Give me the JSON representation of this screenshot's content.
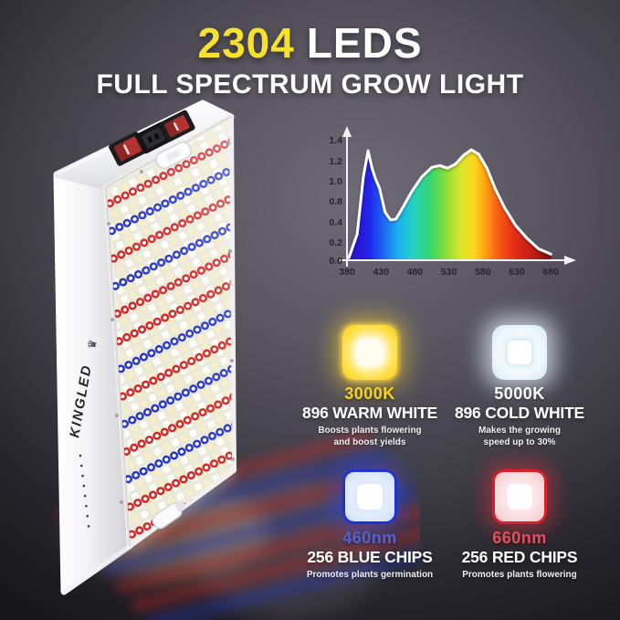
{
  "header": {
    "led_count": "2304",
    "led_word": "LEDS",
    "subtitle": "FULL SPECTRUM GROW LIGHT"
  },
  "panel": {
    "brand": "KINGLED",
    "brand_logo_glyph": "♛",
    "stripes": [
      "red",
      "blue",
      "red",
      "blue",
      "red",
      "red",
      "blue",
      "red",
      "blue",
      "red",
      "blue",
      "red",
      "red",
      "blue"
    ]
  },
  "colors": {
    "accent_yellow": "#f8e12d",
    "warm_value_text": "#f7d21e",
    "blue_value_text": "#5063d6",
    "red_value_text": "#e44f5e",
    "red_led": "#cf2727",
    "blue_led": "#2736c4",
    "curve_line": "#ffffff",
    "axis": "#f2f2f4",
    "tick_text": "#26252d"
  },
  "chart_data": {
    "type": "area",
    "title": "",
    "xlabel": "",
    "ylabel": "",
    "xlim": [
      380,
      690
    ],
    "ylim": [
      0,
      1.4
    ],
    "grid": false,
    "legend": false,
    "xtick_labels": [
      "380",
      "430",
      "480",
      "530",
      "580",
      "630",
      "680"
    ],
    "ytick_labels": [
      "1.4",
      "1.2",
      "1.0",
      "0.8",
      "0.4",
      "0.2",
      "0.0"
    ],
    "x": [
      383,
      395,
      404,
      411,
      417,
      422,
      428,
      436,
      444,
      452,
      462,
      475,
      490,
      505,
      517,
      528,
      540,
      552,
      563,
      574,
      586,
      598,
      612,
      628,
      645,
      662,
      680
    ],
    "y": [
      0.03,
      0.3,
      0.95,
      1.25,
      1.05,
      0.93,
      0.82,
      0.55,
      0.46,
      0.47,
      0.6,
      0.78,
      0.95,
      1.06,
      1.08,
      1.05,
      1.1,
      1.2,
      1.26,
      1.21,
      1.05,
      0.82,
      0.6,
      0.4,
      0.25,
      0.13,
      0.07
    ],
    "fill": "spectral rainbow gradient (blue to red)",
    "line_color": "#ffffff"
  },
  "chips": [
    {
      "value": "3000K",
      "name": "896 WARM WHITE",
      "desc": "Boosts plants flowering and boost yields"
    },
    {
      "value": "5000K",
      "name": "896 COLD WHITE",
      "desc": "Makes the growing speed up to 30%"
    },
    {
      "value": "460nm",
      "name": "256 BLUE CHIPS",
      "desc": "Promotes plants germination"
    },
    {
      "value": "660nm",
      "name": "256 RED CHIPS",
      "desc": "Promotes plants flowering"
    }
  ]
}
